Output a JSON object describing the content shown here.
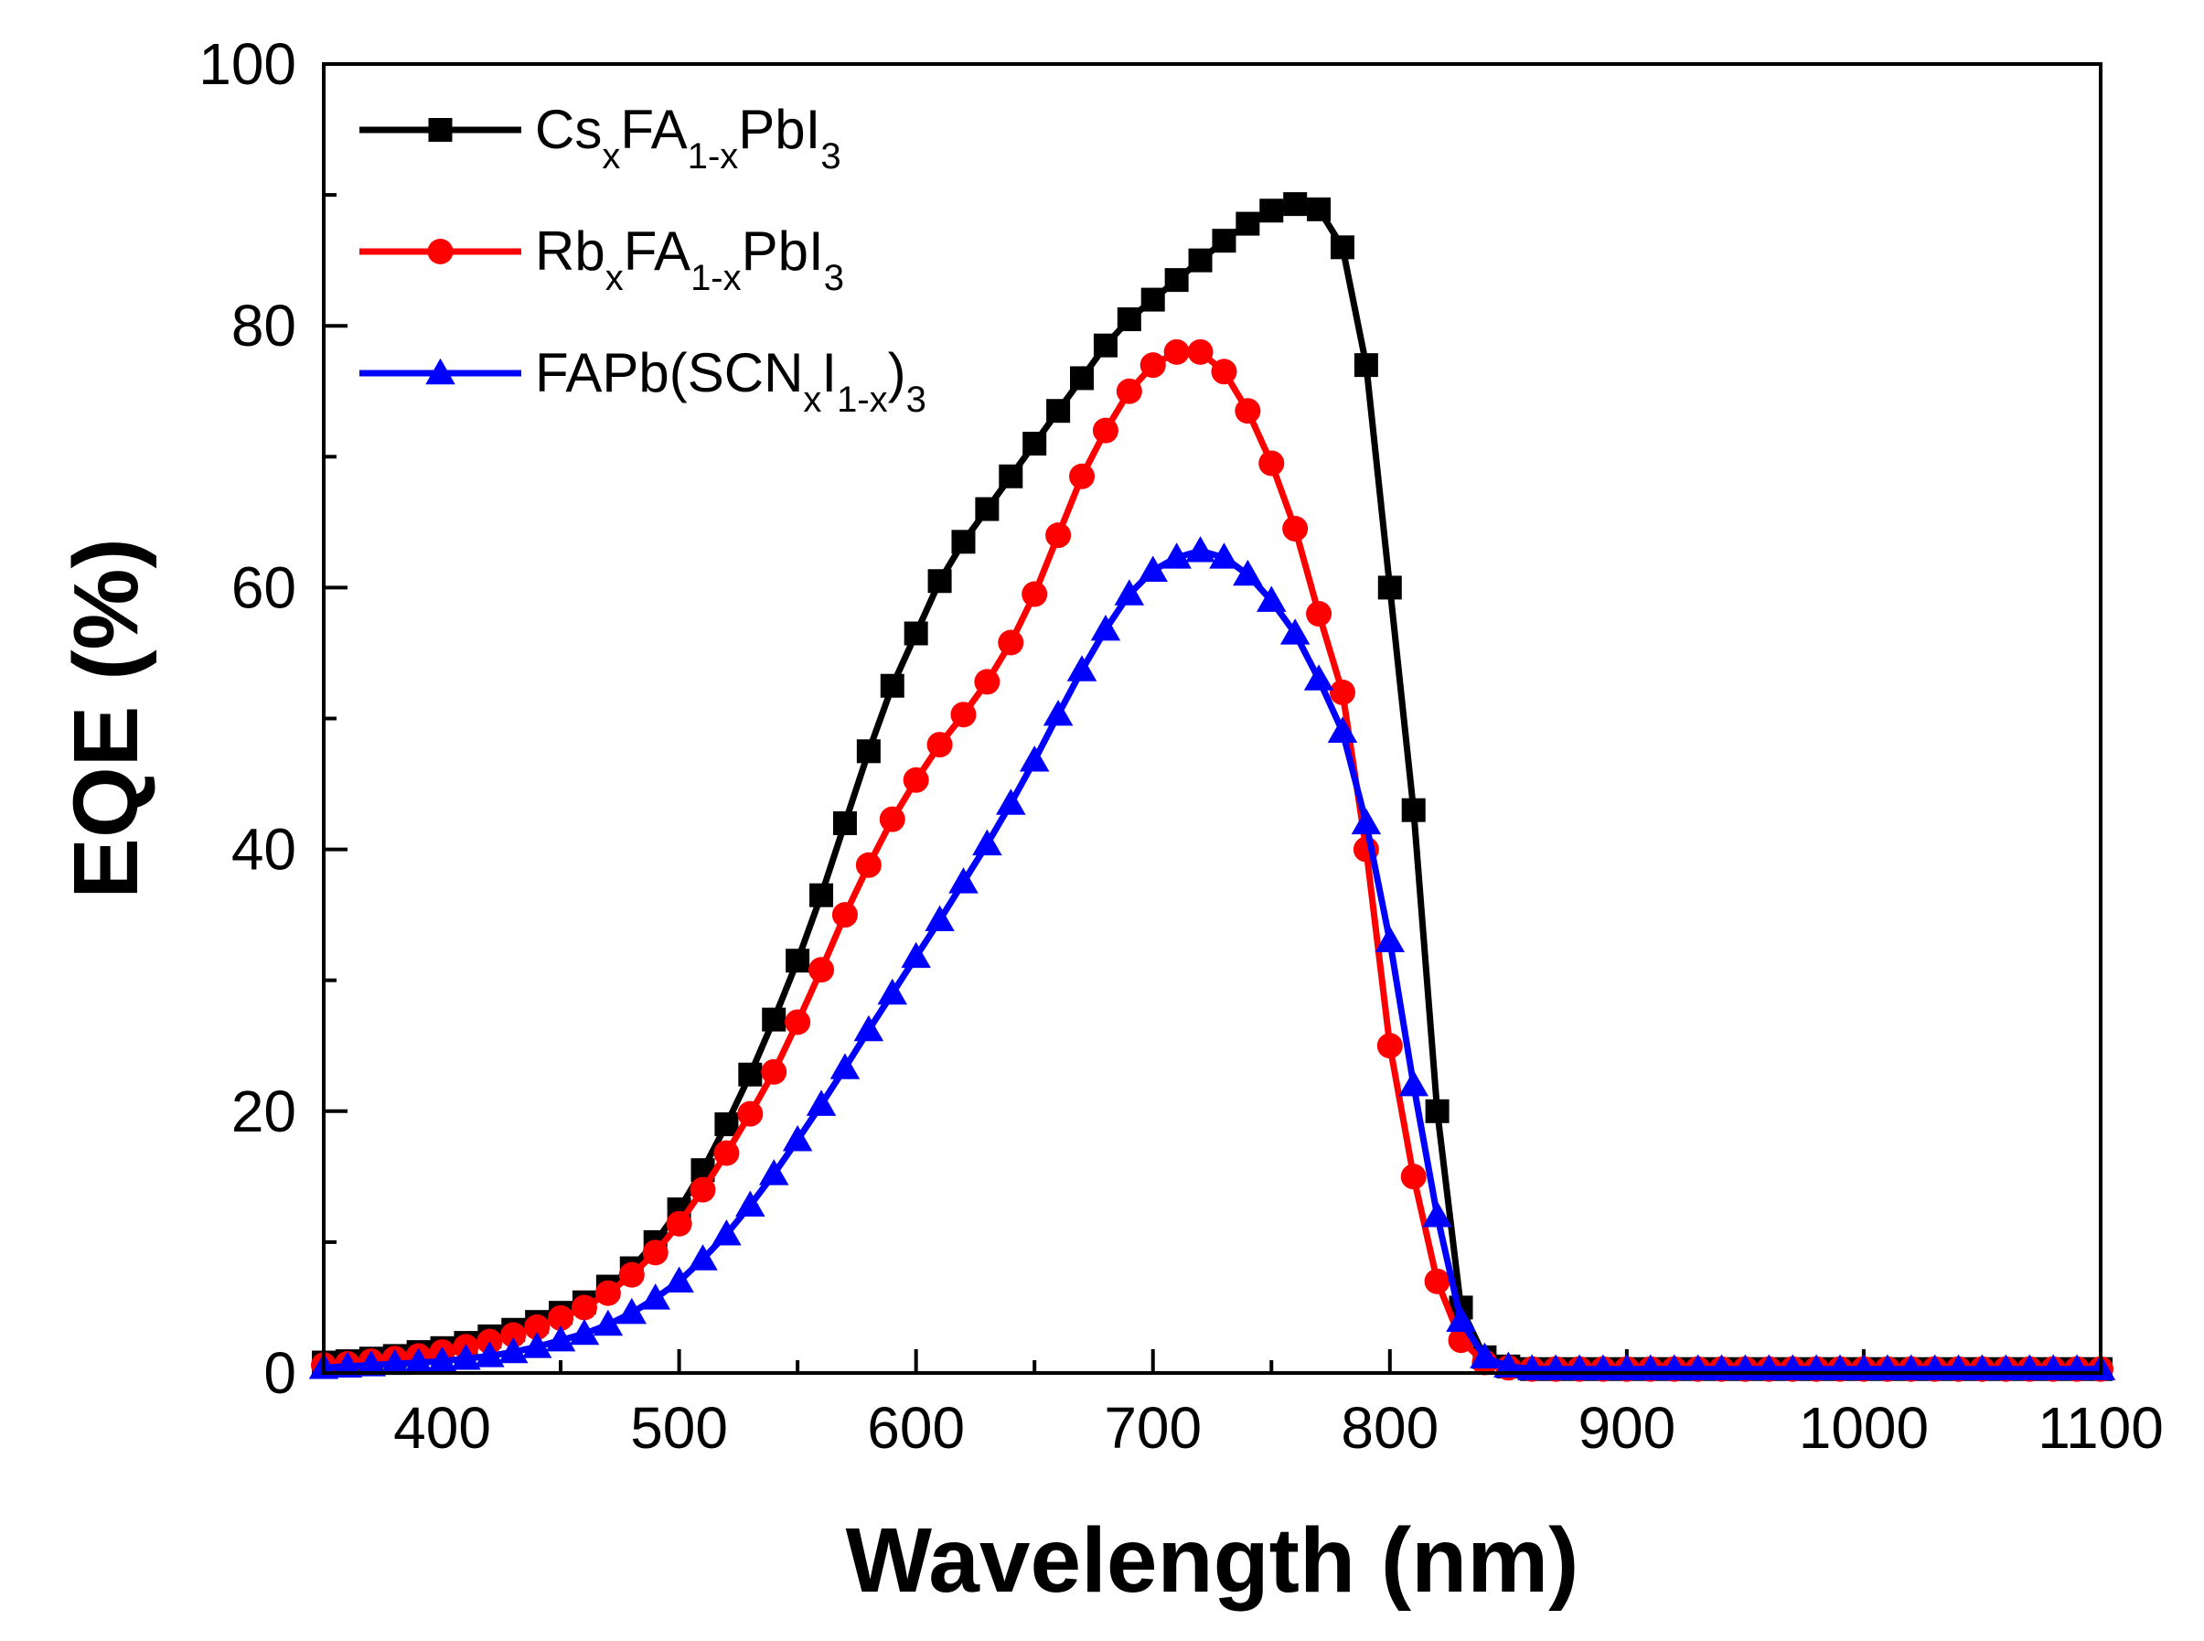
{
  "chart_data": {
    "type": "line",
    "title": "",
    "xlabel": "Wavelength (nm)",
    "ylabel": "EQE (%)",
    "xlim": [
      350,
      1100
    ],
    "ylim": [
      0,
      100
    ],
    "x_ticks": [
      400,
      500,
      600,
      700,
      800,
      900,
      1000,
      1100
    ],
    "y_ticks": [
      0,
      20,
      40,
      60,
      80,
      100
    ],
    "x_tick_labels": [
      "400",
      "500",
      "600",
      "700",
      "800",
      "900",
      "1000",
      "1100"
    ],
    "y_tick_labels": [
      "0",
      "20",
      "40",
      "60",
      "80",
      "100"
    ],
    "grid": false,
    "legend_position": "top-left",
    "x": [
      350,
      360,
      370,
      380,
      390,
      400,
      410,
      420,
      430,
      440,
      450,
      460,
      470,
      480,
      490,
      500,
      510,
      520,
      530,
      540,
      550,
      560,
      570,
      580,
      590,
      600,
      610,
      620,
      630,
      640,
      650,
      660,
      670,
      680,
      690,
      700,
      710,
      720,
      730,
      740,
      750,
      760,
      770,
      780,
      790,
      800,
      810,
      820,
      830,
      840,
      850,
      860,
      870,
      880,
      890,
      900,
      910,
      920,
      930,
      940,
      950,
      960,
      970,
      980,
      990,
      1000,
      1010,
      1020,
      1030,
      1040,
      1050,
      1060,
      1070,
      1080,
      1090,
      1100
    ],
    "series": [
      {
        "name": "CsxFA1-xPbI3",
        "legend_parts": [
          [
            "Cs",
            ""
          ],
          [
            "x",
            "sub"
          ],
          [
            "FA",
            ""
          ],
          [
            "1-x",
            "sub"
          ],
          [
            "PbI",
            ""
          ],
          [
            "3",
            "sub"
          ]
        ],
        "color": "#000000",
        "marker": "square",
        "values": [
          0.8,
          0.9,
          1.1,
          1.3,
          1.6,
          1.9,
          2.3,
          2.8,
          3.3,
          3.9,
          4.6,
          5.4,
          6.6,
          8.0,
          10.0,
          12.5,
          15.5,
          19.0,
          22.8,
          27.0,
          31.5,
          36.5,
          42.0,
          47.5,
          52.5,
          56.5,
          60.5,
          63.5,
          66.0,
          68.5,
          71.0,
          73.5,
          76.0,
          78.5,
          80.5,
          82.0,
          83.5,
          85.0,
          86.5,
          87.8,
          88.8,
          89.3,
          88.9,
          86.0,
          77.0,
          60.0,
          43.0,
          20.0,
          5.0,
          1.2,
          0.5,
          0.3,
          0.3,
          0.3,
          0.3,
          0.3,
          0.3,
          0.3,
          0.3,
          0.3,
          0.3,
          0.3,
          0.3,
          0.3,
          0.3,
          0.3,
          0.3,
          0.3,
          0.3,
          0.3,
          0.3,
          0.3,
          0.3,
          0.3,
          0.3,
          0.3
        ]
      },
      {
        "name": "RbxFA1-xPbI3",
        "legend_parts": [
          [
            "Rb",
            ""
          ],
          [
            "x",
            "sub"
          ],
          [
            "FA",
            ""
          ],
          [
            "1-x",
            "sub"
          ],
          [
            "PbI",
            ""
          ],
          [
            "3",
            "sub"
          ]
        ],
        "color": "#ff0000",
        "marker": "circle",
        "values": [
          0.6,
          0.7,
          0.9,
          1.1,
          1.3,
          1.6,
          2.0,
          2.4,
          2.9,
          3.5,
          4.2,
          5.0,
          6.1,
          7.5,
          9.2,
          11.4,
          14.0,
          16.8,
          19.8,
          23.0,
          26.8,
          30.8,
          35.0,
          38.8,
          42.3,
          45.3,
          48.0,
          50.3,
          52.8,
          55.8,
          59.5,
          64.0,
          68.5,
          72.0,
          75.0,
          77.0,
          78.0,
          78.0,
          76.5,
          73.5,
          69.5,
          64.5,
          58.0,
          52.0,
          40.0,
          25.0,
          15.0,
          7.0,
          2.5,
          0.8,
          0.4,
          0.3,
          0.3,
          0.3,
          0.3,
          0.3,
          0.3,
          0.3,
          0.3,
          0.3,
          0.3,
          0.3,
          0.3,
          0.3,
          0.3,
          0.3,
          0.3,
          0.3,
          0.3,
          0.3,
          0.3,
          0.3,
          0.3,
          0.3,
          0.3,
          0.3
        ]
      },
      {
        "name": "FAPb(SCNxI1-x)3",
        "legend_parts": [
          [
            "FAPb(SCN",
            ""
          ],
          [
            "x",
            "sub"
          ],
          [
            "I",
            ""
          ],
          [
            "1-x",
            "sub"
          ],
          [
            ")",
            ""
          ],
          [
            "3",
            "sub"
          ]
        ],
        "color": "#0000ff",
        "marker": "triangle",
        "values": [
          0.4,
          0.5,
          0.6,
          0.7,
          0.8,
          0.9,
          1.1,
          1.3,
          1.6,
          2.0,
          2.5,
          3.0,
          3.7,
          4.6,
          5.7,
          7.0,
          8.7,
          10.6,
          12.8,
          15.2,
          17.8,
          20.5,
          23.3,
          26.2,
          29.0,
          31.8,
          34.6,
          37.5,
          40.4,
          43.5,
          46.8,
          50.3,
          53.7,
          56.8,
          59.5,
          61.3,
          62.3,
          62.8,
          62.3,
          61.0,
          59.0,
          56.5,
          53.0,
          49.0,
          42.0,
          33.0,
          22.0,
          12.0,
          4.0,
          1.2,
          0.5,
          0.3,
          0.3,
          0.3,
          0.3,
          0.3,
          0.3,
          0.3,
          0.3,
          0.3,
          0.3,
          0.3,
          0.3,
          0.3,
          0.3,
          0.3,
          0.3,
          0.3,
          0.3,
          0.3,
          0.3,
          0.3,
          0.3,
          0.3,
          0.3,
          0.3
        ]
      }
    ]
  }
}
